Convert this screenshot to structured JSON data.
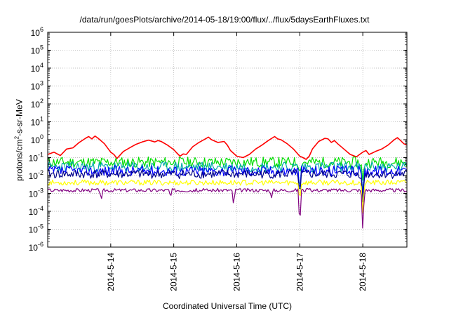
{
  "chart_data": {
    "type": "line",
    "title": "/data/run/goesPlots/archive/2014-05-18/19:00/flux/../flux/5daysEarthFluxes.txt",
    "xlabel": "Coordinated Universal Time (UTC)",
    "ylabel": {
      "pre": "protons/cm",
      "sup": "2",
      "post": "-s-sr-MeV"
    },
    "yscale": "log",
    "ylim": [
      1e-06,
      1000000.0
    ],
    "xlim": [
      0,
      5.7
    ],
    "y_ticks": [
      {
        "value": 1e-06,
        "exp": "-6"
      },
      {
        "value": 1e-05,
        "exp": "-5"
      },
      {
        "value": 0.0001,
        "exp": "-4"
      },
      {
        "value": 0.001,
        "exp": "-3"
      },
      {
        "value": 0.01,
        "exp": "-2"
      },
      {
        "value": 0.1,
        "exp": "-1"
      },
      {
        "value": 1,
        "exp": "0"
      },
      {
        "value": 10,
        "exp": "1"
      },
      {
        "value": 100,
        "exp": "2"
      },
      {
        "value": 1000,
        "exp": "3"
      },
      {
        "value": 10000,
        "exp": "4"
      },
      {
        "value": 100000,
        "exp": "5"
      },
      {
        "value": 1000000,
        "exp": "6"
      }
    ],
    "x_ticks": [
      {
        "value": 1,
        "label": "2014-5-14"
      },
      {
        "value": 2,
        "label": "2014-5-15"
      },
      {
        "value": 3,
        "label": "2014-5-16"
      },
      {
        "value": 4,
        "label": "2014-5-17"
      },
      {
        "value": 5,
        "label": "2014-5-18"
      }
    ],
    "grid": true,
    "legend": "none",
    "series": [
      {
        "color": "#ff0000",
        "points": [
          [
            0,
            0.15
          ],
          [
            0.1,
            0.2
          ],
          [
            0.2,
            0.13
          ],
          [
            0.3,
            0.3
          ],
          [
            0.4,
            0.35
          ],
          [
            0.5,
            0.7
          ],
          [
            0.6,
            1.2
          ],
          [
            0.65,
            1.5
          ],
          [
            0.7,
            1.1
          ],
          [
            0.75,
            1.6
          ],
          [
            0.8,
            1.2
          ],
          [
            0.9,
            0.6
          ],
          [
            1.0,
            0.2
          ],
          [
            1.05,
            0.15
          ],
          [
            1.1,
            0.09
          ],
          [
            1.2,
            0.22
          ],
          [
            1.3,
            0.35
          ],
          [
            1.4,
            0.55
          ],
          [
            1.5,
            0.75
          ],
          [
            1.6,
            0.95
          ],
          [
            1.7,
            0.75
          ],
          [
            1.75,
            0.9
          ],
          [
            1.8,
            0.8
          ],
          [
            1.9,
            0.5
          ],
          [
            2.0,
            0.28
          ],
          [
            2.05,
            0.18
          ],
          [
            2.1,
            0.12
          ],
          [
            2.15,
            0.16
          ],
          [
            2.2,
            0.15
          ],
          [
            2.3,
            0.4
          ],
          [
            2.4,
            0.7
          ],
          [
            2.5,
            1.1
          ],
          [
            2.55,
            1.4
          ],
          [
            2.6,
            1.0
          ],
          [
            2.7,
            0.7
          ],
          [
            2.8,
            0.8
          ],
          [
            2.85,
            0.5
          ],
          [
            2.9,
            0.25
          ],
          [
            3.0,
            0.12
          ],
          [
            3.1,
            0.1
          ],
          [
            3.2,
            0.15
          ],
          [
            3.3,
            0.3
          ],
          [
            3.4,
            0.5
          ],
          [
            3.5,
            0.9
          ],
          [
            3.6,
            1.5
          ],
          [
            3.65,
            1.1
          ],
          [
            3.7,
            1.0
          ],
          [
            3.8,
            0.6
          ],
          [
            3.9,
            0.3
          ],
          [
            4.0,
            0.12
          ],
          [
            4.05,
            0.1
          ],
          [
            4.1,
            0.08
          ],
          [
            4.15,
            0.12
          ],
          [
            4.2,
            0.3
          ],
          [
            4.3,
            0.8
          ],
          [
            4.4,
            1.2
          ],
          [
            4.45,
            1.1
          ],
          [
            4.5,
            0.7
          ],
          [
            4.55,
            0.9
          ],
          [
            4.6,
            0.6
          ],
          [
            4.7,
            0.3
          ],
          [
            4.8,
            0.15
          ],
          [
            4.9,
            0.11
          ],
          [
            4.95,
            0.15
          ],
          [
            5.0,
            0.2
          ],
          [
            5.05,
            0.25
          ],
          [
            5.1,
            0.15
          ],
          [
            5.15,
            0.18
          ],
          [
            5.2,
            0.22
          ],
          [
            5.3,
            0.3
          ],
          [
            5.4,
            0.5
          ],
          [
            5.5,
            1.0
          ],
          [
            5.55,
            1.3
          ],
          [
            5.6,
            0.9
          ],
          [
            5.65,
            0.6
          ],
          [
            5.7,
            0.5
          ]
        ]
      },
      {
        "color": "#00dd00",
        "base": 0.055,
        "amp": 0.3,
        "seed": 11,
        "dips": [
          [
            4.0,
            0.01
          ],
          [
            5.0,
            0.004
          ]
        ]
      },
      {
        "color": "#00aaaa",
        "base": 0.03,
        "amp": 0.3,
        "seed": 23,
        "dips": [
          [
            4.0,
            0.001
          ],
          [
            5.0,
            0.0006
          ]
        ]
      },
      {
        "color": "#0000ff",
        "base": 0.018,
        "amp": 0.3,
        "seed": 37,
        "dips": [
          [
            4.0,
            0.0008
          ],
          [
            5.0,
            0.0004
          ]
        ]
      },
      {
        "color": "#00008b",
        "base": 0.012,
        "amp": 0.25,
        "seed": 41,
        "dips": [
          [
            4.0,
            0.0006
          ],
          [
            5.0,
            0.0002
          ]
        ]
      },
      {
        "color": "#ffff00",
        "base": 0.004,
        "amp": 0.15,
        "seed": 53,
        "dips": [
          [
            4.0,
            0.0003
          ],
          [
            5.0,
            5e-05
          ]
        ]
      },
      {
        "color": "#800080",
        "base": 0.0015,
        "amp": 0.1,
        "seed": 67,
        "dips": [
          [
            0.85,
            0.0004
          ],
          [
            1.95,
            0.0006
          ],
          [
            2.95,
            0.0002
          ],
          [
            3.55,
            0.0005
          ],
          [
            4.0,
            1e-05
          ],
          [
            5.0,
            6e-06
          ]
        ]
      }
    ]
  }
}
